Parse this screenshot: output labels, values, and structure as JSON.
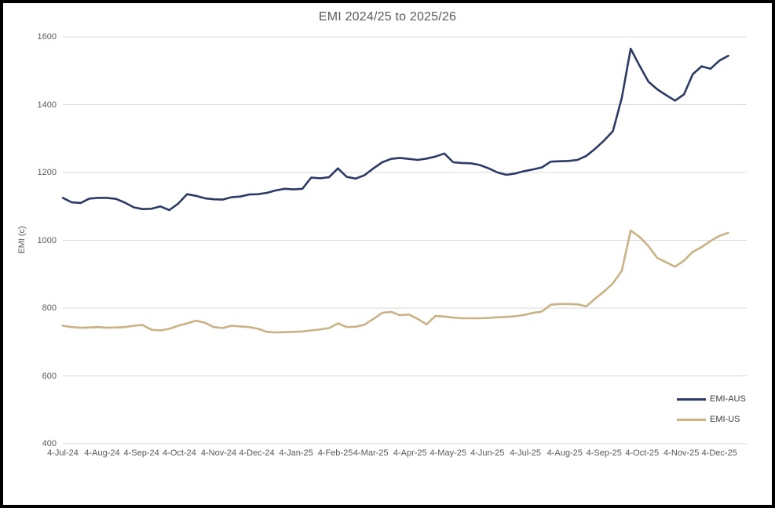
{
  "window": {
    "title": "EMI 2024/25 to 2025/26"
  },
  "colors": {
    "background": "#FFFFFF",
    "frame_border": "#000000",
    "gridline": "#D9D9D9",
    "axis_text": "#595959",
    "legend_text": "#404040",
    "emi_aus": "#2B3A64",
    "emi_us": "#C8B286"
  },
  "chart_data": {
    "type": "line",
    "title": "EMI 2024/25 to 2025/26",
    "xlabel": "",
    "ylabel": "EMI (c)",
    "ylim": [
      400,
      1600
    ],
    "y_ticks": [
      400,
      600,
      800,
      1000,
      1200,
      1400,
      1600
    ],
    "grid": "horizontal-only",
    "legend_position": "inside-bottom-right",
    "x_unit": "weeks since 4-Jul-24 (weekly data points)",
    "x_ticks": [
      {
        "label": "4-Jul-24",
        "week": 0
      },
      {
        "label": "4-Aug-24",
        "week": 4.43
      },
      {
        "label": "4-Sep-24",
        "week": 8.86
      },
      {
        "label": "4-Oct-24",
        "week": 13.14
      },
      {
        "label": "4-Nov-24",
        "week": 17.57
      },
      {
        "label": "4-Dec-24",
        "week": 21.86
      },
      {
        "label": "4-Jan-25",
        "week": 26.29
      },
      {
        "label": "4-Feb-25",
        "week": 30.71
      },
      {
        "label": "4-Mar-25",
        "week": 34.71
      },
      {
        "label": "4-Apr-25",
        "week": 39.14
      },
      {
        "label": "4-May-25",
        "week": 43.43
      },
      {
        "label": "4-Jun-25",
        "week": 47.86
      },
      {
        "label": "4-Jul-25",
        "week": 52.14
      },
      {
        "label": "4-Aug-25",
        "week": 56.57
      },
      {
        "label": "4-Sep-25",
        "week": 61.0
      },
      {
        "label": "4-Oct-25",
        "week": 65.29
      },
      {
        "label": "4-Nov-25",
        "week": 69.71
      },
      {
        "label": "4-Dec-25",
        "week": 74.0
      }
    ],
    "series": [
      {
        "name": "EMI-AUS",
        "color": "#2B3A64",
        "values": [
          1125,
          1112,
          1110,
          1123,
          1125,
          1125,
          1122,
          1111,
          1097,
          1092,
          1093,
          1100,
          1089,
          1108,
          1136,
          1131,
          1124,
          1121,
          1120,
          1127,
          1129,
          1135,
          1136,
          1140,
          1147,
          1152,
          1150,
          1152,
          1185,
          1183,
          1186,
          1212,
          1187,
          1182,
          1192,
          1212,
          1230,
          1240,
          1243,
          1240,
          1237,
          1241,
          1247,
          1256,
          1230,
          1228,
          1227,
          1222,
          1212,
          1200,
          1193,
          1197,
          1204,
          1209,
          1215,
          1232,
          1233,
          1234,
          1237,
          1249,
          1270,
          1294,
          1322,
          1420,
          1565,
          1515,
          1468,
          1445,
          1428,
          1412,
          1430,
          1490,
          1513,
          1506,
          1530,
          1544
        ]
      },
      {
        "name": "EMI-US",
        "color": "#C8B286",
        "values": [
          748,
          744,
          742,
          743,
          744,
          742,
          743,
          744,
          748,
          750,
          736,
          734,
          739,
          748,
          755,
          763,
          757,
          744,
          741,
          748,
          746,
          744,
          739,
          730,
          728,
          729,
          730,
          731,
          734,
          737,
          741,
          755,
          744,
          745,
          751,
          768,
          786,
          789,
          779,
          781,
          768,
          752,
          777,
          775,
          772,
          770,
          770,
          770,
          771,
          773,
          774,
          776,
          780,
          786,
          790,
          810,
          812,
          812,
          811,
          805,
          828,
          849,
          873,
          910,
          1029,
          1010,
          983,
          948,
          935,
          922,
          940,
          966,
          980,
          998,
          1013,
          1022
        ]
      }
    ]
  }
}
